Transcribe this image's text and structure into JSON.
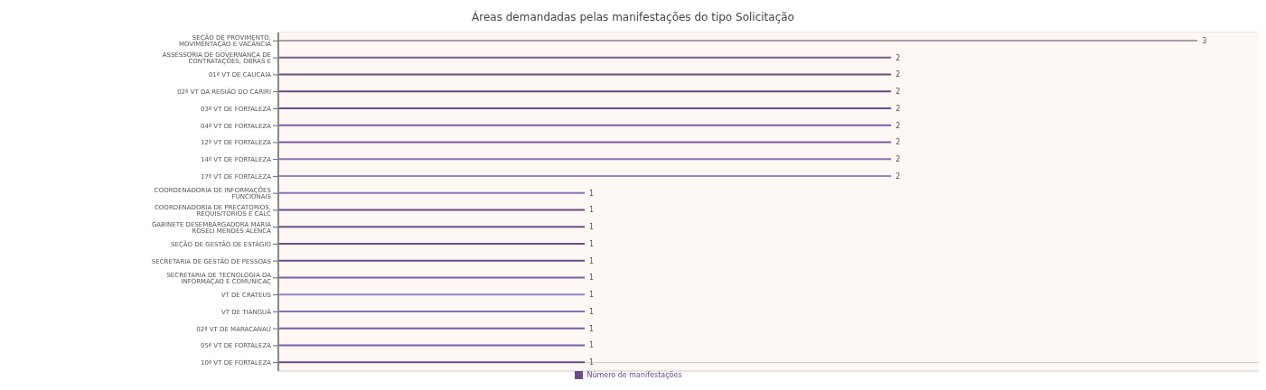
{
  "chart_data": {
    "type": "bar",
    "orientation": "horizontal",
    "title": "Áreas demandadas pelas manifestações do tipo Solicitação",
    "categories": [
      "SEÇÃO DE PROVIMENTO, MOVIMENTAÇÃO E VACÂNCIA",
      "ASSESSORIA DE GOVERNANÇA DE CONTRATAÇÕES, OBRAS E",
      "01ª VT DE CAUCAIA",
      "02ª VT DA REGIÃO DO CARIRI",
      "03ª VT DE FORTALEZA",
      "04ª VT DE FORTALEZA",
      "12ª VT DE FORTALEZA",
      "14ª VT DE FORTALEZA",
      "17ª VT DE FORTALEZA",
      "COORDENADORIA DE INFORMAÇÕES FUNCIONAIS",
      "COORDENADORIA DE PRECATORIOS, REQUISITORIOS E CALC",
      "GABINETE DESEMBARGADORA MARIA ROSELI MENDES ALENCA",
      "SEÇÃO DE GESTÃO DE ESTÁGIO",
      "SECRETARIA DE GESTÃO DE PESSOAS",
      "SECRETARIA DE TECNOLOGIA DA INFORMAÇAO E COMUNICAÇ",
      "VT DE CRATEUS",
      "VT DE TIANGUÁ",
      "02ª VT DE MARACANAÚ",
      "05ª VT DE FORTALEZA",
      "10ª VT DE FORTALEZA"
    ],
    "series": [
      {
        "name": "Número de manifestações",
        "color": "#6a4a8c",
        "values": [
          3,
          2,
          2,
          2,
          2,
          2,
          2,
          2,
          2,
          1,
          1,
          1,
          1,
          1,
          1,
          1,
          1,
          1,
          1,
          1
        ],
        "colors": [
          "#b09aa4",
          "#7a5a8a",
          "#6e4a7e",
          "#6a4a82",
          "#6a4a8c",
          "#7a5aa8",
          "#7a5aa0",
          "#8a70b8",
          "#9a80c8",
          "#8a70b8",
          "#6a4a7e",
          "#6a4a7e",
          "#6e4a82",
          "#6a4a8c",
          "#7a5aa8",
          "#9a80c8",
          "#8a70b8",
          "#7a5aa0",
          "#7a5aa8",
          "#6a4a8c"
        ]
      }
    ],
    "xlim": [
      0,
      3.2
    ],
    "data_labels": true,
    "grid": "y",
    "legend": "bottom",
    "tick_labels": "y"
  }
}
